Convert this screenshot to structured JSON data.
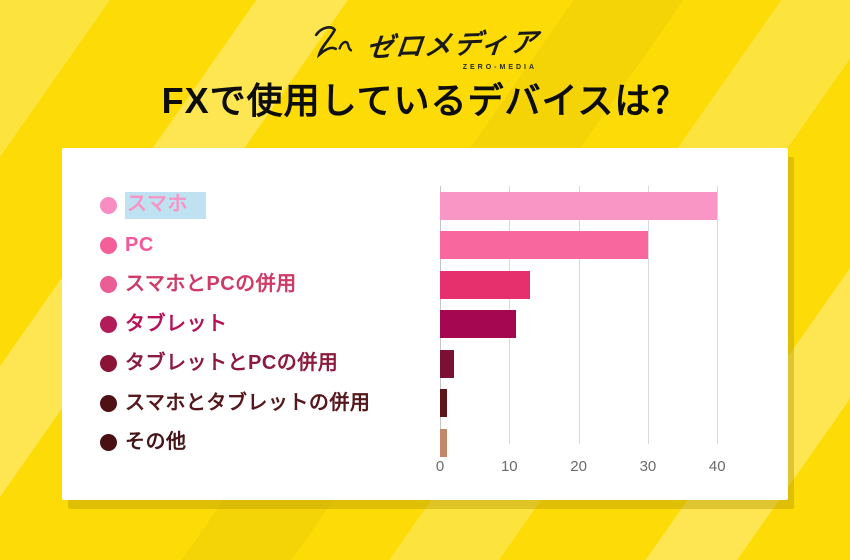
{
  "header": {
    "logo_mark": "Zm-signature",
    "logo_text": "ゼロメディア",
    "logo_subtext": "ZERO-MEDIA",
    "title": "FXで使用しているデバイスは？"
  },
  "chart_data": {
    "type": "bar",
    "orientation": "horizontal",
    "title": "FXで使用しているデバイスは？",
    "categories": [
      "スマホ",
      "PC",
      "スマホとPCの併用",
      "タブレット",
      "タブレットとPCの併用",
      "スマホとタブレットの併用",
      "その他"
    ],
    "values": [
      40,
      30,
      13,
      11,
      2,
      1,
      1
    ],
    "bar_colors": [
      "#fa96c6",
      "#f9679f",
      "#e6306e",
      "#a50850",
      "#7c1034",
      "#5c1519",
      "#c1886b"
    ],
    "dot_colors": [
      "#f98cc3",
      "#f45f9a",
      "#ea5d95",
      "#b01d59",
      "#8c1338",
      "#4f1114",
      "#491013"
    ],
    "label_colors": [
      "#f794c4",
      "#f4579a",
      "#cf3a67",
      "#b61257",
      "#8c1c3f",
      "#55181c",
      "#45161a"
    ],
    "xlabel": "",
    "ylabel": "",
    "xlim": [
      0,
      43
    ],
    "ticks": [
      0,
      10,
      20,
      30,
      40
    ],
    "grid": true,
    "legend_position": "left",
    "highlighted_category_index": 0,
    "highlight_color": "#bfe2f3"
  },
  "colors": {
    "background_yellow": "#fcdb06",
    "stripe_light_yellow": "#ffe851",
    "card_background": "#ffffff",
    "card_shadow": "#bb9d06",
    "title_text": "#0d0d0d",
    "gridline": "#d9d9d9",
    "axis_text": "#6b6b6b"
  }
}
